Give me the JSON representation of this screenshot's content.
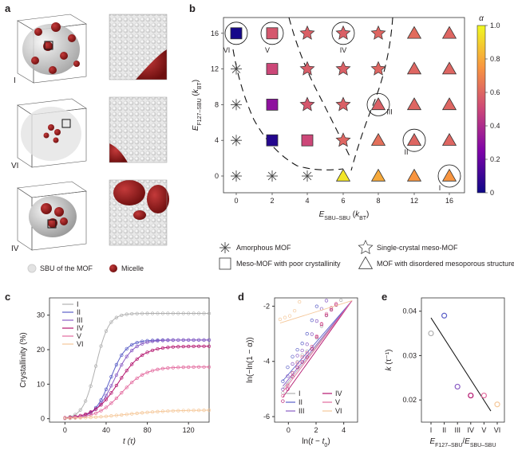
{
  "panel_labels": {
    "a": "a",
    "b": "b",
    "c": "c",
    "d": "d",
    "e": "e"
  },
  "panel_a": {
    "rows": [
      "I",
      "VI",
      "IV"
    ],
    "legend": {
      "sbu": "SBU of the MOF",
      "micelle": "Micelle"
    },
    "colors": {
      "sbu": "#d8d8d8",
      "micelle": "#8b1a1a"
    }
  },
  "chart_data": [
    {
      "id": "b",
      "type": "scatter",
      "title": "",
      "xlabel": "E_SBU–SBU (k_BT)",
      "ylabel": "E_F127–SBU (k_BT)",
      "x_ticks": [
        0,
        2,
        4,
        6,
        8,
        12,
        16
      ],
      "y_ticks": [
        0,
        4,
        8,
        12,
        16
      ],
      "colorbar": {
        "label": "α",
        "min": 0,
        "max": 1,
        "ticks": [
          "0",
          "0.2",
          "0.4",
          "0.6",
          "0.8",
          "1.0"
        ]
      },
      "points": [
        {
          "x": 0,
          "y": 16,
          "m": "square",
          "a": 0.02
        },
        {
          "x": 2,
          "y": 16,
          "m": "square",
          "a": 0.55
        },
        {
          "x": 4,
          "y": 16,
          "m": "star",
          "a": 0.58
        },
        {
          "x": 6,
          "y": 16,
          "m": "star",
          "a": 0.58
        },
        {
          "x": 8,
          "y": 16,
          "m": "star",
          "a": 0.6
        },
        {
          "x": 12,
          "y": 16,
          "m": "triangle",
          "a": 0.62
        },
        {
          "x": 16,
          "y": 16,
          "m": "triangle",
          "a": 0.6
        },
        {
          "x": 0,
          "y": 12,
          "m": "asterisk",
          "a": null
        },
        {
          "x": 2,
          "y": 12,
          "m": "square",
          "a": 0.5
        },
        {
          "x": 4,
          "y": 12,
          "m": "star",
          "a": 0.57
        },
        {
          "x": 6,
          "y": 12,
          "m": "star",
          "a": 0.58
        },
        {
          "x": 8,
          "y": 12,
          "m": "star",
          "a": 0.6
        },
        {
          "x": 12,
          "y": 12,
          "m": "triangle",
          "a": 0.6
        },
        {
          "x": 16,
          "y": 12,
          "m": "triangle",
          "a": 0.6
        },
        {
          "x": 0,
          "y": 8,
          "m": "asterisk",
          "a": null
        },
        {
          "x": 2,
          "y": 8,
          "m": "square",
          "a": 0.3
        },
        {
          "x": 4,
          "y": 8,
          "m": "star",
          "a": 0.55
        },
        {
          "x": 6,
          "y": 8,
          "m": "star",
          "a": 0.58
        },
        {
          "x": 8,
          "y": 8,
          "m": "triangle",
          "a": 0.58
        },
        {
          "x": 12,
          "y": 8,
          "m": "triangle",
          "a": 0.6
        },
        {
          "x": 16,
          "y": 8,
          "m": "triangle",
          "a": 0.6
        },
        {
          "x": 0,
          "y": 4,
          "m": "asterisk",
          "a": null
        },
        {
          "x": 2,
          "y": 4,
          "m": "square",
          "a": 0.05
        },
        {
          "x": 4,
          "y": 4,
          "m": "square",
          "a": 0.5
        },
        {
          "x": 6,
          "y": 4,
          "m": "star",
          "a": 0.6
        },
        {
          "x": 8,
          "y": 4,
          "m": "triangle",
          "a": 0.63
        },
        {
          "x": 12,
          "y": 4,
          "m": "triangle",
          "a": 0.6
        },
        {
          "x": 16,
          "y": 4,
          "m": "triangle",
          "a": 0.6
        },
        {
          "x": 0,
          "y": 0,
          "m": "asterisk",
          "a": null
        },
        {
          "x": 2,
          "y": 0,
          "m": "asterisk",
          "a": null
        },
        {
          "x": 4,
          "y": 0,
          "m": "asterisk",
          "a": null
        },
        {
          "x": 6,
          "y": 0,
          "m": "triangle",
          "a": 0.95
        },
        {
          "x": 8,
          "y": 0,
          "m": "triangle",
          "a": 0.8
        },
        {
          "x": 12,
          "y": 0,
          "m": "triangle",
          "a": 0.75
        },
        {
          "x": 16,
          "y": 0,
          "m": "triangle",
          "a": 0.75
        }
      ],
      "annotations": [
        {
          "label": "VI",
          "x": 0,
          "y": 16
        },
        {
          "label": "V",
          "x": 2,
          "y": 16
        },
        {
          "label": "IV",
          "x": 6,
          "y": 16
        },
        {
          "label": "III",
          "x": 8,
          "y": 8
        },
        {
          "label": "II",
          "x": 12,
          "y": 4
        },
        {
          "label": "I",
          "x": 16,
          "y": 0
        }
      ],
      "legend": [
        {
          "marker": "asterisk",
          "label": "Amorphous MOF"
        },
        {
          "marker": "star",
          "label": "Single-crystal meso-MOF"
        },
        {
          "marker": "square",
          "label": "Meso-MOF with poor crystallinity"
        },
        {
          "marker": "triangle",
          "label": "MOF with disordered mesoporous structure"
        }
      ]
    },
    {
      "id": "c",
      "type": "line",
      "xlabel": "t (τ)",
      "ylabel": "Crystallinity (%)",
      "xlim": [
        -15,
        140
      ],
      "ylim": [
        -1,
        35
      ],
      "x_ticks": [
        0,
        40,
        80,
        120
      ],
      "y_ticks": [
        0,
        10,
        20,
        30
      ],
      "series": [
        {
          "name": "I",
          "color": "#b0b0b0",
          "A": 30.5,
          "t0": 30,
          "k": 0.16
        },
        {
          "name": "II",
          "color": "#5b5fc7",
          "A": 22.8,
          "t0": 44,
          "k": 0.13
        },
        {
          "name": "III",
          "color": "#8a5cc4",
          "A": 22.8,
          "t0": 48,
          "k": 0.11
        },
        {
          "name": "IV",
          "color": "#b3156e",
          "A": 21,
          "t0": 52,
          "k": 0.085
        },
        {
          "name": "V",
          "color": "#e36a9e",
          "A": 15,
          "t0": 55,
          "k": 0.085
        },
        {
          "name": "VI",
          "color": "#f5c89a",
          "A": 2.5,
          "t0": 60,
          "k": 0.05
        }
      ]
    },
    {
      "id": "d",
      "type": "line",
      "xlabel": "ln(t − t0)",
      "ylabel": "ln(−ln(1 − α))",
      "xlim": [
        -1,
        5
      ],
      "ylim": [
        -6.2,
        -1.7
      ],
      "x_ticks": [
        0,
        2,
        4
      ],
      "y_ticks": [
        -6,
        -4,
        -2
      ],
      "series": [
        {
          "name": "I",
          "color": "#b0b0b0",
          "slope": 0.8,
          "icpt": -5.0
        },
        {
          "name": "II",
          "color": "#5b5fc7",
          "slope": 1.05,
          "icpt": -4.7
        },
        {
          "name": "III",
          "color": "#8a5cc4",
          "slope": 0.95,
          "icpt": -4.9
        },
        {
          "name": "IV",
          "color": "#b3156e",
          "slope": 0.9,
          "icpt": -5.3
        },
        {
          "name": "V",
          "color": "#e36a9e",
          "slope": 0.85,
          "icpt": -5.1
        },
        {
          "name": "VI",
          "color": "#f5c89a",
          "slope": 0.55,
          "icpt": -2.5
        }
      ]
    },
    {
      "id": "e",
      "type": "scatter",
      "xlabel": "E_F127–SBU/E_SBU–SBU",
      "ylabel": "k (τ⁻¹)",
      "categories": [
        "I",
        "II",
        "III",
        "IV",
        "V",
        "VI"
      ],
      "ylim": [
        0.015,
        0.043
      ],
      "y_ticks": [
        0.02,
        0.03,
        0.04
      ],
      "values": [
        0.035,
        0.039,
        0.023,
        0.021,
        0.021,
        0.019
      ],
      "colors": [
        "#b0b0b0",
        "#5b5fc7",
        "#8a5cc4",
        "#b3156e",
        "#e36a9e",
        "#f5c89a"
      ],
      "fit": [
        0.0385,
        0.0175
      ]
    }
  ]
}
